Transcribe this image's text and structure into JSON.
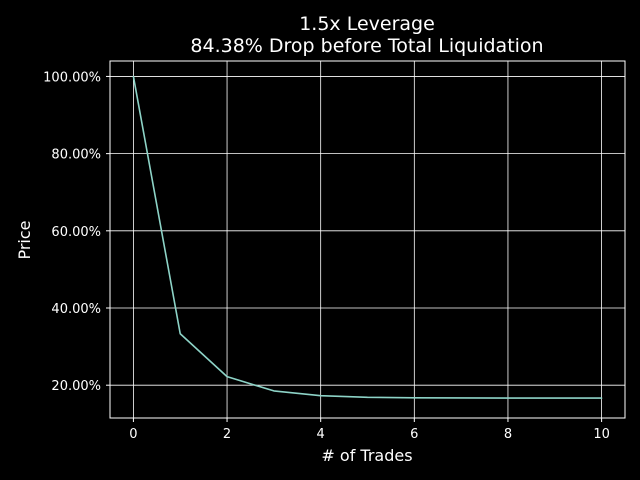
{
  "chart_data": {
    "type": "line",
    "title": "1.5x Leverage",
    "subtitle": "84.38% Drop before Total Liquidation",
    "xlabel": "# of Trades",
    "ylabel": "Price",
    "xlim": [
      -0.5,
      10.5
    ],
    "ylim": [
      11.5,
      104.0
    ],
    "x_ticks": [
      0,
      2,
      4,
      6,
      8,
      10
    ],
    "x_tick_labels": [
      "0",
      "2",
      "4",
      "6",
      "8",
      "10"
    ],
    "y_ticks": [
      20,
      40,
      60,
      80,
      100
    ],
    "y_tick_labels": [
      "20.00%",
      "40.00%",
      "60.00%",
      "80.00%",
      "100.00%"
    ],
    "grid": true,
    "series": [
      {
        "x": [
          0,
          1,
          2,
          3,
          4,
          5,
          6,
          7,
          8,
          9,
          10
        ],
        "values": [
          100.0,
          33.33,
          22.22,
          18.52,
          17.28,
          16.87,
          16.74,
          16.69,
          16.67,
          16.67,
          16.66
        ]
      }
    ]
  },
  "colors": {
    "background": "#000000",
    "axes": "#ffffff",
    "grid": "#ffffff",
    "line": "#8dd3c7",
    "text": "#ffffff"
  }
}
